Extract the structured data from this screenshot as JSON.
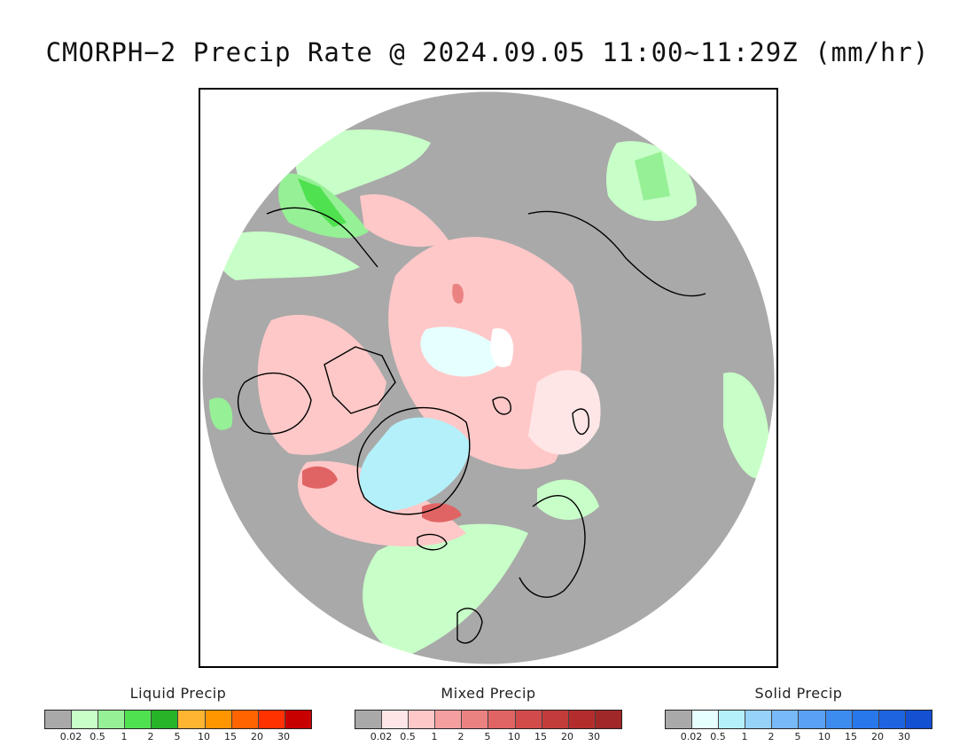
{
  "title": "CMORPH−2 Precip Rate @ 2024.09.05 11:00~11:29Z (mm/hr)",
  "map": {
    "projection": "north-polar-stereographic",
    "background_color": "#a9a9a9",
    "outside_color": "#ffffff",
    "coastline_color": "#000000"
  },
  "legends": [
    {
      "title": "Liquid Precip",
      "colors": [
        "#a9a9a9",
        "#c8ffc8",
        "#96f096",
        "#50e150",
        "#28b428",
        "#ffb432",
        "#ff9600",
        "#ff6400",
        "#ff3200",
        "#c80000"
      ],
      "ticks": [
        "0.02",
        "0.5",
        "1",
        "2",
        "5",
        "10",
        "15",
        "20",
        "30"
      ]
    },
    {
      "title": "Mixed Precip",
      "colors": [
        "#a9a9a9",
        "#ffe6e6",
        "#ffc8c8",
        "#f5a0a0",
        "#eb8282",
        "#e16464",
        "#d24b4b",
        "#c33c3c",
        "#b42d2d",
        "#a02828"
      ],
      "ticks": [
        "0.02",
        "0.5",
        "1",
        "2",
        "5",
        "10",
        "15",
        "20",
        "30"
      ]
    },
    {
      "title": "Solid Precip",
      "colors": [
        "#a9a9a9",
        "#e6ffff",
        "#b4f0fa",
        "#96d2fa",
        "#78b9fa",
        "#5aa0f5",
        "#3c8cf0",
        "#2878eb",
        "#1e64e1",
        "#1450d2"
      ],
      "ticks": [
        "0.02",
        "0.5",
        "1",
        "2",
        "5",
        "10",
        "15",
        "20",
        "30"
      ]
    }
  ]
}
